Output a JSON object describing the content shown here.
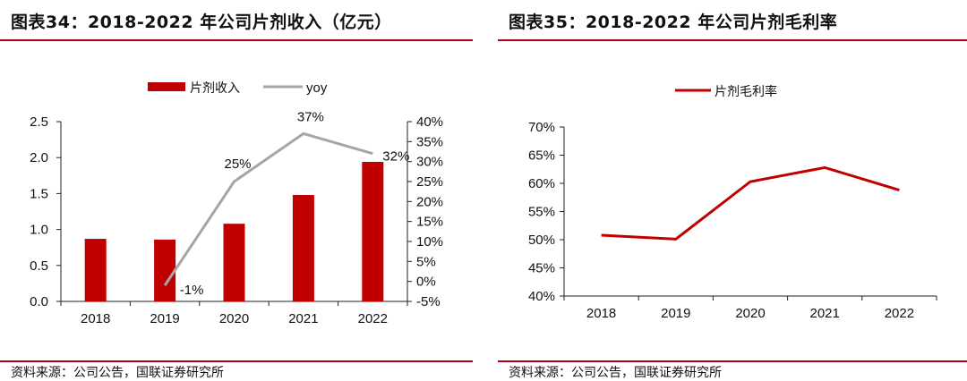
{
  "left": {
    "title": "图表34：2018-2022 年公司片剂收入（亿元）",
    "source": "资料来源：公司公告，国联证券研究所",
    "colors": {
      "bar": "#c00000",
      "line": "#a6a6a6",
      "rule": "#b0001c"
    },
    "chart_data": {
      "type": "bar",
      "categories": [
        "2018",
        "2019",
        "2020",
        "2021",
        "2022"
      ],
      "series": [
        {
          "name": "片剂收入",
          "type": "bar",
          "axis": "left",
          "values": [
            0.87,
            0.86,
            1.08,
            1.48,
            1.94
          ]
        },
        {
          "name": "yoy",
          "type": "line",
          "axis": "right",
          "values": [
            null,
            -1,
            25,
            37,
            32
          ],
          "labels": [
            "",
            "-1%",
            "25%",
            "37%",
            "32%"
          ]
        }
      ],
      "ylim": [
        0,
        2.5
      ],
      "yticks": [
        "0.0",
        "0.5",
        "1.0",
        "1.5",
        "2.0",
        "2.5"
      ],
      "y2lim": [
        -5,
        40
      ],
      "y2ticks": [
        "-5%",
        "0%",
        "5%",
        "10%",
        "15%",
        "20%",
        "25%",
        "30%",
        "35%",
        "40%"
      ],
      "legend": "top"
    }
  },
  "right": {
    "title": "图表35：2018-2022 年公司片剂毛利率",
    "source": "资料来源：公司公告，国联证券研究所",
    "colors": {
      "line": "#c00000",
      "rule": "#b0001c"
    },
    "chart_data": {
      "type": "line",
      "categories": [
        "2018",
        "2019",
        "2020",
        "2021",
        "2022"
      ],
      "series": [
        {
          "name": "片剂毛利率",
          "values": [
            50.8,
            50.1,
            60.3,
            62.8,
            58.8
          ]
        }
      ],
      "ylim": [
        40,
        70
      ],
      "yticks": [
        "40%",
        "45%",
        "50%",
        "55%",
        "60%",
        "65%",
        "70%"
      ],
      "legend": "top"
    }
  }
}
